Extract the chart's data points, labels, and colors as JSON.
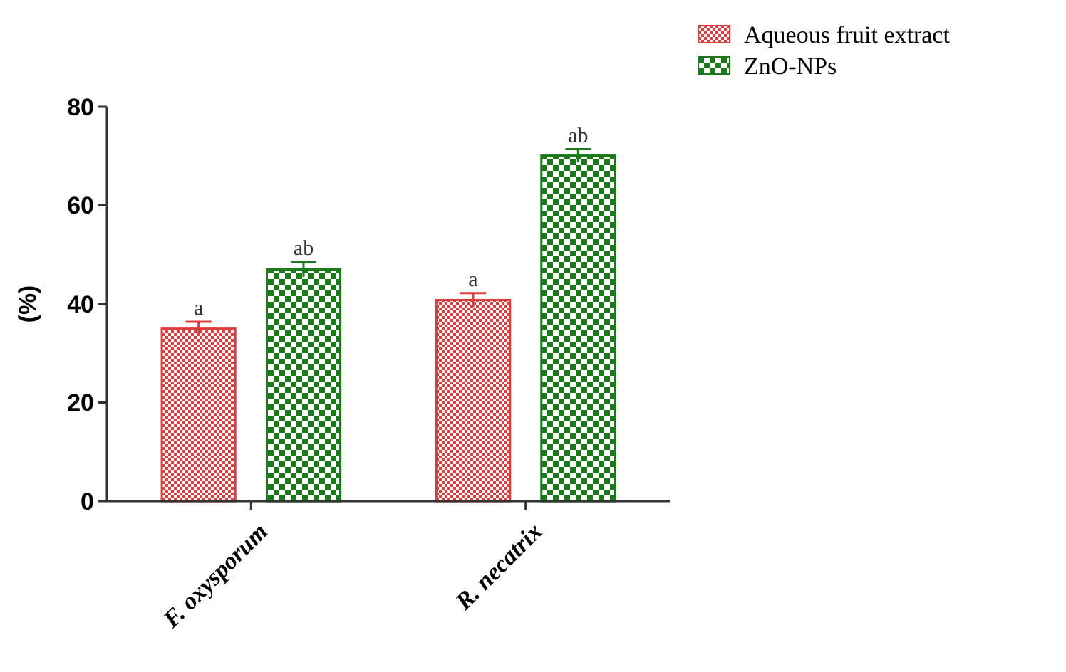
{
  "chart_data": {
    "type": "bar",
    "ylabel": "(%)",
    "categories": [
      "F. oxysporum",
      "R. necatrix"
    ],
    "series": [
      {
        "name": "Aqueous fruit extract",
        "color": "#e03c3c",
        "values": [
          35.0,
          40.8
        ],
        "errors": [
          1.4,
          1.4
        ],
        "value_labels": [
          "a",
          "a"
        ]
      },
      {
        "name": "ZnO-NPs",
        "color": "#1a7a1a",
        "values": [
          47.0,
          70.1
        ],
        "errors": [
          1.5,
          1.3
        ],
        "value_labels": [
          "ab",
          "ab"
        ]
      }
    ],
    "ylim": [
      0,
      80
    ],
    "yticks": [
      0,
      20,
      40,
      60,
      80
    ],
    "grid": false,
    "legend": "top right"
  }
}
